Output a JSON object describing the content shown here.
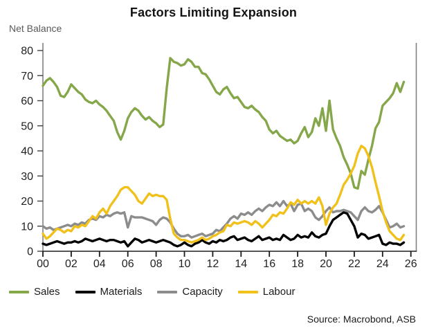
{
  "header": {
    "title": "Factors Limiting Expansion",
    "y_axis_title": "Net Balance"
  },
  "footer": {
    "source": "Source: Macrobond, ASB"
  },
  "colors": {
    "sales": "#85a74a",
    "materials": "#000000",
    "capacity": "#8c8c8c",
    "labour": "#f0c11b",
    "axis_left": "#808080",
    "axis_right": "#808080",
    "axis_bottom": "#3d3d3d",
    "tick_text": "#1f1f1f"
  },
  "chart_data": {
    "type": "line",
    "title": "Factors Limiting Expansion",
    "xlabel": "",
    "ylabel": "Net Balance",
    "grid": false,
    "legend_position": "bottom",
    "xlim": [
      2000,
      2026.4
    ],
    "ylim": [
      0,
      80
    ],
    "y_ticks": [
      0,
      10,
      20,
      30,
      40,
      50,
      60,
      70,
      80
    ],
    "x_tick_years": [
      2000,
      2002,
      2004,
      2006,
      2008,
      2010,
      2012,
      2014,
      2016,
      2018,
      2020,
      2022,
      2024,
      2026
    ],
    "x_tick_labels": [
      "00",
      "02",
      "04",
      "06",
      "08",
      "10",
      "12",
      "14",
      "16",
      "18",
      "20",
      "22",
      "24",
      "26"
    ],
    "x_start_year": 2000,
    "x_step_years": 0.25,
    "series": [
      {
        "name": "Sales",
        "color": "#85a74a",
        "values": [
          66,
          68,
          69,
          67.5,
          65.5,
          62,
          61.5,
          63.5,
          66.5,
          65,
          63.5,
          62.5,
          60.5,
          59.5,
          59,
          60,
          58.5,
          57.5,
          56,
          54,
          52,
          47.5,
          44.5,
          48,
          53,
          55.5,
          57,
          56,
          54,
          52.5,
          53.5,
          52,
          51,
          49.5,
          50.5,
          65,
          77,
          75.5,
          75,
          74,
          74.5,
          76.5,
          75.5,
          73.5,
          73.5,
          71,
          70.5,
          68.5,
          66,
          63.5,
          62.5,
          64.5,
          65.5,
          63,
          61,
          61.5,
          59.5,
          57.5,
          57,
          58,
          56.5,
          55.5,
          53.5,
          52,
          48.5,
          47,
          48,
          46,
          45,
          44,
          44.5,
          43,
          44,
          47,
          49.5,
          45.5,
          47.5,
          53,
          50,
          57,
          48,
          60,
          48.5,
          45,
          42,
          37.5,
          34.5,
          31,
          25.5,
          25,
          32,
          30.5,
          36.5,
          42,
          49,
          51.5,
          58,
          59.5,
          61,
          63,
          67,
          63.5,
          67.5
        ]
      },
      {
        "name": "Materials",
        "color": "#000000",
        "values": [
          3,
          2.5,
          3,
          3.5,
          4,
          3.5,
          3,
          3.5,
          3.5,
          4,
          3.5,
          4,
          5,
          4.5,
          4,
          4.5,
          5,
          4.5,
          4,
          4.5,
          4.5,
          4,
          3.5,
          4,
          2,
          3.5,
          5,
          4.5,
          3.5,
          4,
          4.5,
          4,
          3.5,
          4,
          4.5,
          4,
          3.5,
          2.5,
          2,
          2.5,
          3.5,
          2.5,
          2,
          3,
          3.5,
          4.5,
          3.5,
          3,
          4,
          3.5,
          4.5,
          4,
          4.5,
          5.5,
          6,
          4.5,
          5,
          5.5,
          4.5,
          4,
          5,
          6,
          4.5,
          5,
          5.5,
          4.5,
          5,
          4.5,
          6.5,
          5.5,
          4.5,
          5,
          6.5,
          5.5,
          6,
          5.5,
          7.5,
          6,
          5.5,
          6.5,
          7,
          10,
          12.5,
          13.5,
          14.5,
          15.5,
          15,
          12.5,
          10,
          5.5,
          7,
          6.5,
          5,
          5.5,
          6,
          6.5,
          3,
          2.5,
          3.5,
          3,
          3,
          2.5,
          3.5
        ]
      },
      {
        "name": "Capacity",
        "color": "#8c8c8c",
        "values": [
          10,
          9,
          9.5,
          8.5,
          9,
          9.5,
          10,
          10.5,
          10,
          11,
          10.5,
          11.5,
          11,
          12.5,
          13,
          12.5,
          14,
          13.5,
          14.5,
          14,
          15,
          15.5,
          15,
          15.5,
          9.5,
          14,
          13.5,
          13.5,
          13.5,
          13,
          12.5,
          12,
          10.5,
          12.5,
          13.5,
          13,
          11.5,
          9,
          7,
          6,
          6,
          6.5,
          5.5,
          6,
          6.5,
          7,
          6,
          6.5,
          7,
          8.5,
          8,
          9.5,
          11,
          13,
          14,
          13,
          15,
          14.5,
          15.5,
          14.5,
          16,
          17,
          16,
          17.5,
          18.5,
          18,
          19.5,
          18,
          20,
          18,
          19,
          16,
          18.5,
          19,
          16,
          17,
          16,
          13.5,
          12.5,
          14,
          16,
          17.5,
          15.5,
          16,
          16,
          16.5,
          16,
          15.5,
          14,
          12.5,
          16,
          17.5,
          16,
          15.5,
          16.5,
          18,
          15.5,
          12.5,
          9.5,
          10,
          11,
          9.5,
          10
        ]
      },
      {
        "name": "Labour",
        "color": "#f0c11b",
        "values": [
          7,
          5,
          6,
          7.5,
          9,
          8.5,
          7.5,
          8.5,
          8,
          10,
          9.5,
          10.5,
          10,
          12,
          14,
          13,
          15.5,
          17,
          15,
          18,
          20,
          22,
          24.5,
          25.5,
          25.5,
          24,
          22.5,
          20,
          19,
          21,
          23,
          22,
          22.5,
          22,
          22,
          20.5,
          13,
          7,
          5.5,
          4.5,
          4.5,
          4,
          3.5,
          4,
          4.5,
          5.5,
          4.5,
          5,
          6,
          6.5,
          7.5,
          8,
          10.5,
          10,
          11.5,
          11,
          11.5,
          12,
          11.5,
          10.5,
          12,
          11,
          9.5,
          11,
          12.5,
          14.5,
          14,
          15.5,
          15,
          17,
          19.5,
          18.5,
          20.5,
          19,
          20,
          19,
          20,
          19,
          21.5,
          18,
          10.5,
          15,
          17.5,
          19,
          22.5,
          26.5,
          28.5,
          31,
          34,
          39,
          42,
          41,
          38,
          33.5,
          27.5,
          22,
          16,
          11.5,
          8,
          6.5,
          5,
          4.5,
          6.5
        ]
      }
    ]
  }
}
